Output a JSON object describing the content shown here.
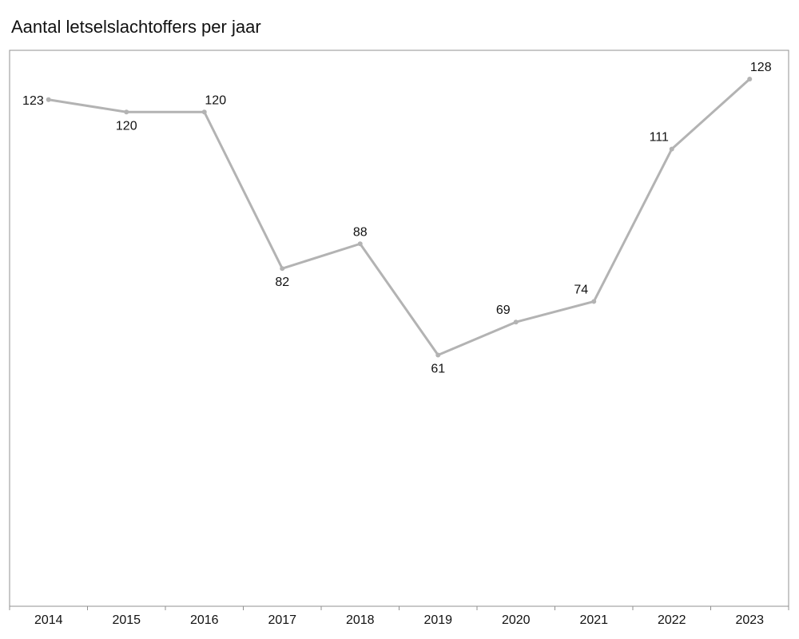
{
  "chart_data": {
    "type": "line",
    "title": "Aantal letselslachtoffers per jaar",
    "xlabel": "",
    "ylabel": "",
    "categories": [
      "2014",
      "2015",
      "2016",
      "2017",
      "2018",
      "2019",
      "2020",
      "2021",
      "2022",
      "2023"
    ],
    "series": [
      {
        "values": [
          123,
          120,
          120,
          82,
          88,
          61,
          69,
          74,
          111,
          128
        ],
        "color": "#b3b3b3"
      }
    ],
    "ylim": [
      0,
      128
    ],
    "grid": false,
    "legend": "none",
    "data_labels": true,
    "colors": {
      "line": "#b3b3b3",
      "frame": "#909090",
      "text": "#111111"
    }
  }
}
